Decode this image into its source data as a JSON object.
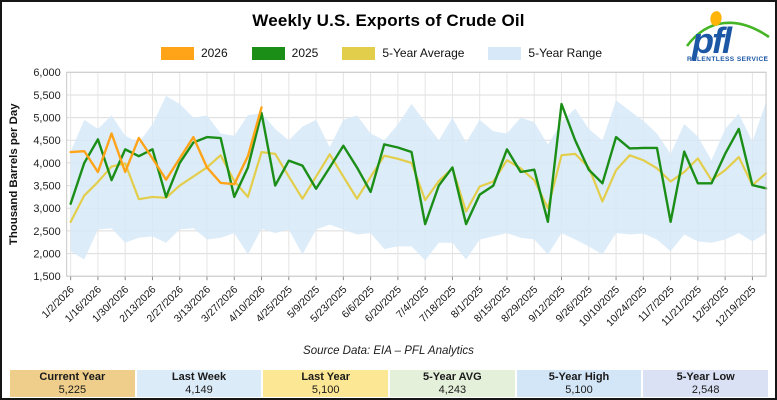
{
  "title": "Weekly U.S. Exports of Crude Oil",
  "logo": {
    "text": "pfl",
    "tagline": "RELENTLESS SERVICE",
    "tm": "™"
  },
  "legend": [
    {
      "label": "2026",
      "color": "#FFA319"
    },
    {
      "label": "2025",
      "color": "#1B8E18"
    },
    {
      "label": "5-Year Average",
      "color": "#E3CE4B"
    },
    {
      "label": "5-Year Range",
      "color": "#D7E9F8"
    }
  ],
  "chart_data": {
    "type": "line",
    "title": "Weekly U.S. Exports of Crude Oil",
    "xlabel": "",
    "ylabel": "Thousand Barrels per Day",
    "ylim": [
      1500,
      6000
    ],
    "ytick_step": 500,
    "grid": true,
    "legend_position": "top",
    "x_labels": [
      "1/2/2026",
      "1/16/2026",
      "1/30/2026",
      "2/13/2026",
      "2/27/2026",
      "3/13/2026",
      "3/27/2026",
      "4/10/2026",
      "4/25/2025",
      "5/9/2025",
      "5/23/2025",
      "6/6/2025",
      "6/20/2025",
      "7/4/2025",
      "7/18/2025",
      "8/1/2025",
      "8/15/2025",
      "8/29/2025",
      "9/12/2025",
      "9/26/2025",
      "10/10/2025",
      "10/24/2025",
      "11/7/2025",
      "11/21/2025",
      "12/5/2025",
      "12/19/2025"
    ],
    "weeks_per_label": 2,
    "series": [
      {
        "name": "5-Year Range",
        "type": "band",
        "color": "#D7E9F8",
        "high": [
          4250,
          4950,
          4750,
          5050,
          4600,
          4450,
          4850,
          5480,
          5300,
          5000,
          5050,
          4650,
          4600,
          5050,
          5100,
          4750,
          4500,
          4800,
          4950,
          4350,
          4950,
          5050,
          4650,
          4500,
          4850,
          5300,
          4900,
          4500,
          5000,
          4450,
          4950,
          4700,
          4650,
          5000,
          4900,
          4400,
          4900,
          5200,
          4750,
          4500,
          5380,
          5150,
          4930,
          4650,
          4200,
          4860,
          4580,
          4060,
          4750,
          5090,
          4470,
          5340
        ],
        "low": [
          2050,
          1870,
          2530,
          2560,
          2240,
          2350,
          2380,
          2240,
          2530,
          2560,
          2310,
          2350,
          2450,
          1980,
          2548,
          2450,
          2530,
          1980,
          2530,
          2640,
          2530,
          2420,
          2450,
          2100,
          2160,
          2160,
          1850,
          2240,
          2240,
          1870,
          2310,
          2380,
          2450,
          2350,
          2310,
          1980,
          2450,
          2310,
          2160,
          1980,
          2450,
          2420,
          2440,
          2310,
          2050,
          2420,
          2270,
          2240,
          2310,
          2450,
          2270,
          2450
        ]
      },
      {
        "name": "5-Year Average",
        "type": "line",
        "color": "#E3CE4B",
        "values": [
          2700,
          3280,
          3580,
          3920,
          3990,
          3200,
          3250,
          3230,
          3500,
          3700,
          3900,
          4170,
          3600,
          3250,
          4240,
          4200,
          3700,
          3210,
          3700,
          4190,
          3700,
          3210,
          3690,
          4160,
          4090,
          4000,
          3180,
          3600,
          3880,
          2930,
          3480,
          3590,
          4060,
          3880,
          3620,
          3000,
          4170,
          4200,
          3900,
          3150,
          3840,
          4170,
          4060,
          3880,
          3590,
          3800,
          4100,
          3620,
          3840,
          4130,
          3510,
          3770
        ]
      },
      {
        "name": "2025",
        "type": "line",
        "color": "#1B8E18",
        "values": [
          3100,
          4000,
          4520,
          3620,
          4300,
          4150,
          4300,
          3250,
          4000,
          4450,
          4570,
          4550,
          3250,
          3900,
          5100,
          3500,
          4050,
          3940,
          3430,
          3900,
          4380,
          3900,
          3360,
          4410,
          4340,
          4240,
          2650,
          3500,
          3900,
          2650,
          3300,
          3500,
          4300,
          3800,
          3850,
          2700,
          5300,
          4500,
          3850,
          3550,
          4570,
          4320,
          4330,
          4330,
          2700,
          4250,
          3550,
          3550,
          4200,
          4750,
          3510,
          3440
        ]
      },
      {
        "name": "2026",
        "type": "line",
        "color": "#FFA319",
        "values": [
          4240,
          4260,
          3800,
          4650,
          3800,
          4550,
          4100,
          3630,
          4100,
          4570,
          3900,
          3560,
          3530,
          4149,
          5225
        ]
      }
    ]
  },
  "source_note": "Source Data: EIA – PFL Analytics",
  "stats": [
    {
      "label": "Current Year",
      "value": "5,225",
      "bg": "#EFCE8B"
    },
    {
      "label": "Last Week",
      "value": "4,149",
      "bg": "#DCEBF8"
    },
    {
      "label": "Last Year",
      "value": "5,100",
      "bg": "#FCE794"
    },
    {
      "label": "5-Year AVG",
      "value": "4,243",
      "bg": "#E4F0DA"
    },
    {
      "label": "5-Year High",
      "value": "5,100",
      "bg": "#D3E6F8"
    },
    {
      "label": "5-Year Low",
      "value": "2,548",
      "bg": "#DBE1F5"
    }
  ]
}
